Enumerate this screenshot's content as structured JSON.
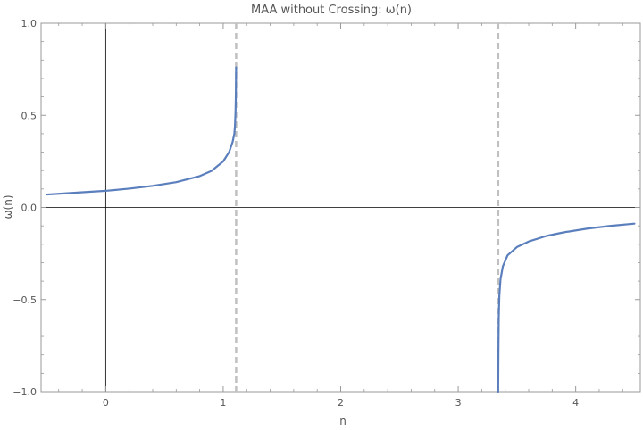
{
  "chart_data": {
    "type": "line",
    "title": "MAA without Crossing: ω(n)",
    "xlabel": "n",
    "ylabel": "ω(n)",
    "xlim": [
      -0.55,
      4.55
    ],
    "ylim": [
      -1.0,
      1.0
    ],
    "x_ticks": [
      0,
      1,
      2,
      3,
      4
    ],
    "x_tick_labels": [
      "0",
      "1",
      "2",
      "3",
      "4"
    ],
    "y_ticks": [
      -1.0,
      -0.5,
      0.0,
      0.5,
      1.0
    ],
    "y_tick_labels": [
      "−1.0",
      "−0.5",
      "0.0",
      "0.5",
      "1.0"
    ],
    "grid": false,
    "asymptotes_x": [
      1.11,
      3.34
    ],
    "colors": {
      "series": "#5b7fbd",
      "asymptote": "#c0c0c0",
      "axis": "#000000",
      "frame": "#999999"
    },
    "series": [
      {
        "x": [
          -0.5,
          -0.3,
          0.0,
          0.2,
          0.4,
          0.6,
          0.8,
          0.9,
          1.0,
          1.05,
          1.08,
          1.095,
          1.1,
          1.105,
          1.108,
          1.11
        ],
        "y": [
          0.07,
          0.078,
          0.09,
          0.102,
          0.117,
          0.137,
          0.17,
          0.198,
          0.25,
          0.3,
          0.355,
          0.4,
          0.44,
          0.52,
          0.62,
          0.76
        ]
      },
      {
        "x": [
          3.34,
          3.342,
          3.345,
          3.35,
          3.36,
          3.38,
          3.42,
          3.5,
          3.6,
          3.75,
          3.9,
          4.1,
          4.3,
          4.5
        ],
        "y": [
          -1.0,
          -0.8,
          -0.6,
          -0.48,
          -0.39,
          -0.32,
          -0.26,
          -0.215,
          -0.185,
          -0.155,
          -0.135,
          -0.115,
          -0.1,
          -0.088
        ]
      }
    ]
  }
}
